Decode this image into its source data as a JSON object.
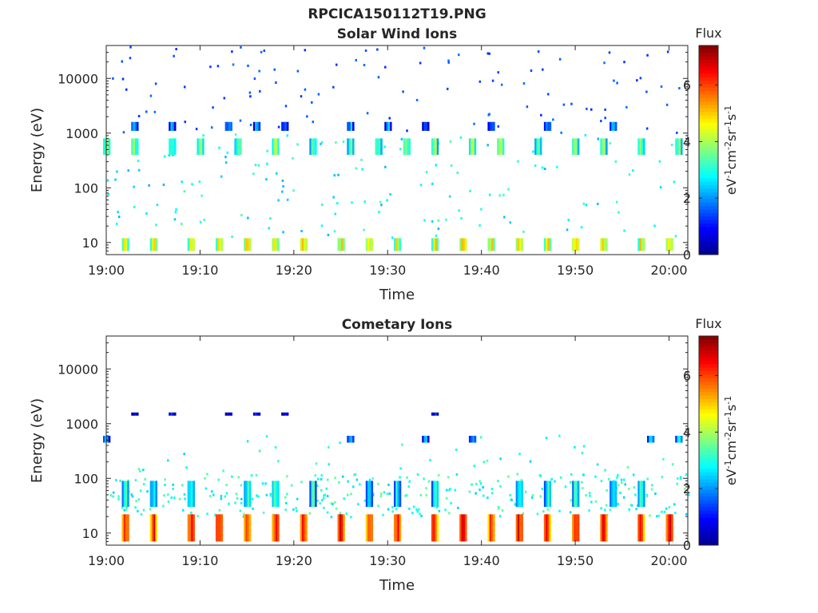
{
  "figure": {
    "title": "RPCICA150112T19.PNG",
    "colormap": [
      "#00008f",
      "#0000ff",
      "#0080ff",
      "#00ffff",
      "#80ff80",
      "#ffff00",
      "#ff8000",
      "#ff0000",
      "#800000"
    ]
  },
  "chart_data": [
    {
      "type": "heatmap",
      "title": "Solar Wind Ions",
      "xlabel": "Time",
      "ylabel": "Energy (eV)",
      "yscale": "log",
      "ylim": [
        6,
        40000
      ],
      "xlim": [
        "19:00",
        "20:02"
      ],
      "xticks": [
        "19:00",
        "19:10",
        "19:20",
        "19:30",
        "19:40",
        "19:50",
        "20:00"
      ],
      "yticks": [
        10,
        100,
        1000,
        10000
      ],
      "ytick_labels": [
        "10",
        "100",
        "1000",
        "10000"
      ],
      "colorbar": {
        "label": "Flux",
        "units": "eV-1cm-2sr-1s-1",
        "range": [
          0,
          7.4
        ],
        "ticks": [
          0,
          2,
          4,
          6
        ]
      },
      "bands": [
        {
          "energy_range": [
            7,
            12
          ],
          "flux": 4.5,
          "times": [
            "19:02",
            "19:05",
            "19:09",
            "19:12",
            "19:15",
            "19:18",
            "19:21",
            "19:25",
            "19:28",
            "19:31",
            "19:35",
            "19:38",
            "19:41",
            "19:44",
            "19:47",
            "19:50",
            "19:53",
            "19:57",
            "20:00"
          ]
        },
        {
          "energy_range": [
            400,
            800
          ],
          "flux": 3.6,
          "times": [
            "19:00",
            "19:03",
            "19:07",
            "19:10",
            "19:14",
            "19:18",
            "19:22",
            "19:26",
            "19:29",
            "19:32",
            "19:35",
            "19:39",
            "19:42",
            "19:46",
            "19:50",
            "19:53",
            "19:57",
            "20:01"
          ]
        },
        {
          "energy_range": [
            1100,
            1600
          ],
          "flux": 2.0,
          "times": [
            "19:03",
            "19:07",
            "19:13",
            "19:16",
            "19:19",
            "19:26",
            "19:30",
            "19:34",
            "19:41",
            "19:47",
            "19:54"
          ]
        }
      ]
    },
    {
      "type": "heatmap",
      "title": "Cometary Ions",
      "xlabel": "Time",
      "ylabel": "Energy (eV)",
      "yscale": "log",
      "ylim": [
        6,
        40000
      ],
      "xlim": [
        "19:00",
        "20:02"
      ],
      "xticks": [
        "19:00",
        "19:10",
        "19:20",
        "19:30",
        "19:40",
        "19:50",
        "20:00"
      ],
      "yticks": [
        10,
        100,
        1000,
        10000
      ],
      "ytick_labels": [
        "10",
        "100",
        "1000",
        "10000"
      ],
      "colorbar": {
        "label": "Flux",
        "units": "eV-1cm-2sr-1s-1",
        "range": [
          0,
          7.4
        ],
        "ticks": [
          0,
          2,
          4,
          6
        ]
      },
      "bands": [
        {
          "energy_range": [
            7,
            22
          ],
          "flux": 6.3,
          "times": [
            "19:02",
            "19:05",
            "19:09",
            "19:12",
            "19:15",
            "19:18",
            "19:21",
            "19:25",
            "19:28",
            "19:31",
            "19:35",
            "19:38",
            "19:41",
            "19:44",
            "19:47",
            "19:50",
            "19:53",
            "19:57",
            "20:00"
          ]
        },
        {
          "energy_range": [
            30,
            90
          ],
          "flux": 2.8,
          "times": [
            "19:02",
            "19:05",
            "19:09",
            "19:15",
            "19:18",
            "19:22",
            "19:28",
            "19:31",
            "19:35",
            "19:44",
            "19:47",
            "19:50",
            "19:54",
            "19:57"
          ]
        },
        {
          "energy_range": [
            450,
            600
          ],
          "flux": 2.2,
          "times": [
            "19:00",
            "19:26",
            "19:34",
            "19:39",
            "19:58",
            "20:01"
          ]
        },
        {
          "energy_range": [
            1400,
            1600
          ],
          "flux": 1.0,
          "times": [
            "19:03",
            "19:07",
            "19:13",
            "19:16",
            "19:19",
            "19:35"
          ]
        }
      ]
    }
  ]
}
